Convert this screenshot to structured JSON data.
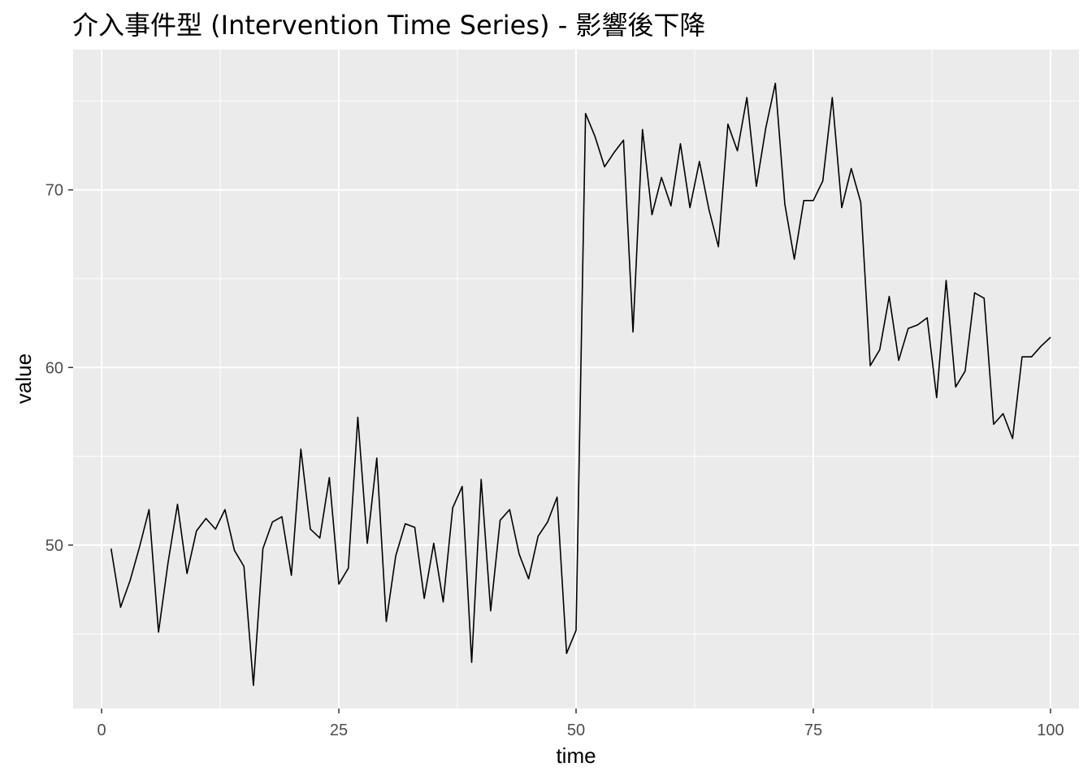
{
  "chart_data": {
    "type": "line",
    "title": "介入事件型 (Intervention Time Series) - 影響後下降",
    "xlabel": "time",
    "ylabel": "value",
    "xlim": [
      -3,
      103
    ],
    "ylim": [
      40.8,
      77.9
    ],
    "x_ticks": [
      {
        "value": 0,
        "label": "0"
      },
      {
        "value": 25,
        "label": "25"
      },
      {
        "value": 50,
        "label": "50"
      },
      {
        "value": 75,
        "label": "75"
      },
      {
        "value": 100,
        "label": "100"
      }
    ],
    "x_minor": [
      12.5,
      37.5,
      62.5,
      87.5
    ],
    "y_ticks": [
      {
        "value": 50,
        "label": "50"
      },
      {
        "value": 60,
        "label": "60"
      },
      {
        "value": 70,
        "label": "70"
      }
    ],
    "y_minor": [
      45,
      55,
      65,
      75
    ],
    "grid": true,
    "legend": "none",
    "colors": {
      "panel": "#ebebeb",
      "grid": "#ffffff",
      "line": "#000000",
      "tick_text": "#4d4d4d"
    },
    "series": [
      {
        "values": [
          {
            "x": 1,
            "y": 49.8
          },
          {
            "x": 2,
            "y": 46.5
          },
          {
            "x": 3,
            "y": 48.0
          },
          {
            "x": 4,
            "y": 49.9
          },
          {
            "x": 5,
            "y": 52.0
          },
          {
            "x": 6,
            "y": 45.1
          },
          {
            "x": 7,
            "y": 49.0
          },
          {
            "x": 8,
            "y": 52.3
          },
          {
            "x": 9,
            "y": 48.4
          },
          {
            "x": 10,
            "y": 50.8
          },
          {
            "x": 11,
            "y": 51.5
          },
          {
            "x": 12,
            "y": 50.9
          },
          {
            "x": 13,
            "y": 52.0
          },
          {
            "x": 14,
            "y": 49.7
          },
          {
            "x": 15,
            "y": 48.8
          },
          {
            "x": 16,
            "y": 42.1
          },
          {
            "x": 17,
            "y": 49.8
          },
          {
            "x": 18,
            "y": 51.3
          },
          {
            "x": 19,
            "y": 51.6
          },
          {
            "x": 20,
            "y": 48.3
          },
          {
            "x": 21,
            "y": 55.4
          },
          {
            "x": 22,
            "y": 50.9
          },
          {
            "x": 23,
            "y": 50.4
          },
          {
            "x": 24,
            "y": 53.8
          },
          {
            "x": 25,
            "y": 47.8
          },
          {
            "x": 26,
            "y": 48.7
          },
          {
            "x": 27,
            "y": 57.2
          },
          {
            "x": 28,
            "y": 50.1
          },
          {
            "x": 29,
            "y": 54.9
          },
          {
            "x": 30,
            "y": 45.7
          },
          {
            "x": 31,
            "y": 49.4
          },
          {
            "x": 32,
            "y": 51.2
          },
          {
            "x": 33,
            "y": 51.0
          },
          {
            "x": 34,
            "y": 47.0
          },
          {
            "x": 35,
            "y": 50.1
          },
          {
            "x": 36,
            "y": 46.8
          },
          {
            "x": 37,
            "y": 52.1
          },
          {
            "x": 38,
            "y": 53.3
          },
          {
            "x": 39,
            "y": 43.4
          },
          {
            "x": 40,
            "y": 53.7
          },
          {
            "x": 41,
            "y": 46.3
          },
          {
            "x": 42,
            "y": 51.4
          },
          {
            "x": 43,
            "y": 52.0
          },
          {
            "x": 44,
            "y": 49.5
          },
          {
            "x": 45,
            "y": 48.1
          },
          {
            "x": 46,
            "y": 50.5
          },
          {
            "x": 47,
            "y": 51.3
          },
          {
            "x": 48,
            "y": 52.7
          },
          {
            "x": 49,
            "y": 43.9
          },
          {
            "x": 50,
            "y": 45.2
          },
          {
            "x": 51,
            "y": 74.3
          },
          {
            "x": 52,
            "y": 73.0
          },
          {
            "x": 53,
            "y": 71.3
          },
          {
            "x": 54,
            "y": 72.1
          },
          {
            "x": 55,
            "y": 72.8
          },
          {
            "x": 56,
            "y": 62.0
          },
          {
            "x": 57,
            "y": 73.4
          },
          {
            "x": 58,
            "y": 68.6
          },
          {
            "x": 59,
            "y": 70.7
          },
          {
            "x": 60,
            "y": 69.1
          },
          {
            "x": 61,
            "y": 72.6
          },
          {
            "x": 62,
            "y": 69.0
          },
          {
            "x": 63,
            "y": 71.6
          },
          {
            "x": 64,
            "y": 68.9
          },
          {
            "x": 65,
            "y": 66.8
          },
          {
            "x": 66,
            "y": 73.7
          },
          {
            "x": 67,
            "y": 72.2
          },
          {
            "x": 68,
            "y": 75.2
          },
          {
            "x": 69,
            "y": 70.2
          },
          {
            "x": 70,
            "y": 73.5
          },
          {
            "x": 71,
            "y": 76.0
          },
          {
            "x": 72,
            "y": 69.2
          },
          {
            "x": 73,
            "y": 66.1
          },
          {
            "x": 74,
            "y": 69.4
          },
          {
            "x": 75,
            "y": 69.4
          },
          {
            "x": 76,
            "y": 70.5
          },
          {
            "x": 77,
            "y": 75.2
          },
          {
            "x": 78,
            "y": 69.0
          },
          {
            "x": 79,
            "y": 71.2
          },
          {
            "x": 80,
            "y": 69.3
          },
          {
            "x": 81,
            "y": 60.1
          },
          {
            "x": 82,
            "y": 61.0
          },
          {
            "x": 83,
            "y": 64.0
          },
          {
            "x": 84,
            "y": 60.4
          },
          {
            "x": 85,
            "y": 62.2
          },
          {
            "x": 86,
            "y": 62.4
          },
          {
            "x": 87,
            "y": 62.8
          },
          {
            "x": 88,
            "y": 58.3
          },
          {
            "x": 89,
            "y": 64.9
          },
          {
            "x": 90,
            "y": 58.9
          },
          {
            "x": 91,
            "y": 59.8
          },
          {
            "x": 92,
            "y": 64.2
          },
          {
            "x": 93,
            "y": 63.9
          },
          {
            "x": 94,
            "y": 56.8
          },
          {
            "x": 95,
            "y": 57.4
          },
          {
            "x": 96,
            "y": 56.0
          },
          {
            "x": 97,
            "y": 60.6
          },
          {
            "x": 98,
            "y": 60.6
          },
          {
            "x": 99,
            "y": 61.2
          },
          {
            "x": 100,
            "y": 61.7
          }
        ]
      }
    ]
  }
}
